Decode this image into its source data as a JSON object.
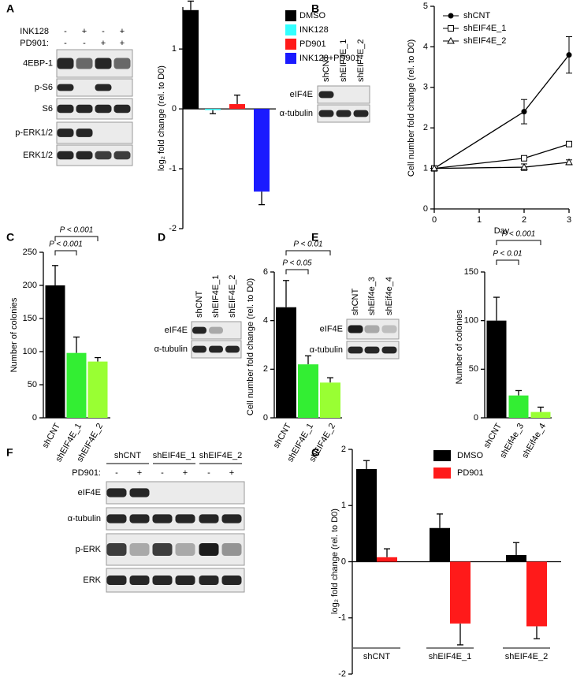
{
  "panels": [
    "A",
    "B",
    "C",
    "D",
    "E",
    "F",
    "G"
  ],
  "blots": [
    {
      "conditions": [
        {
          "name": "INK128",
          "signs": [
            "-",
            "+",
            "-",
            "+"
          ]
        },
        {
          "name": "PD901:",
          "signs": [
            "-",
            "-",
            "+",
            "+"
          ]
        }
      ],
      "rows": [
        "4EBP-1",
        "p-S6",
        "S6",
        "p-ERK1/2",
        "ERK1/2"
      ]
    },
    {
      "lanes": [
        "shCNT",
        "shEIF4E_1",
        "shEIF4E_2"
      ],
      "rows": [
        "eIF4E",
        "α-tubulin"
      ]
    },
    {
      "lanes": [
        "shCNT",
        "shEIF4E_1",
        "shEIF4E_2"
      ],
      "rows": [
        "eIF4E",
        "α-tubulin"
      ]
    },
    {
      "lanes": [
        "shCNT",
        "shEif4e_3",
        "shEif4e_4"
      ],
      "rows": [
        "eIF4E",
        "α-tubulin"
      ]
    },
    {
      "groups": [
        "shCNT",
        "shEIF4E_1",
        "shEIF4E_2"
      ],
      "conditions": [
        {
          "name": "PD901:",
          "signs": [
            "-",
            "+",
            "-",
            "+",
            "-",
            "+"
          ]
        }
      ],
      "rows": [
        "eIF4E",
        "α-tubulin",
        "p-ERK",
        "ERK"
      ]
    }
  ],
  "chart_data": [
    {
      "type": "bar",
      "ylabel": "log₂ fold change (rel. to D0)",
      "ylim": [
        -2,
        1.7
      ],
      "yticks": [
        -2,
        -1,
        0,
        1
      ],
      "series": [
        {
          "name": "DMSO",
          "color": "#000000",
          "values": [
            1.65
          ],
          "errors": [
            0.15
          ]
        },
        {
          "name": "INK128",
          "color": "#33ffff",
          "values": [
            -0.02
          ],
          "errors": [
            0.06
          ]
        },
        {
          "name": "PD901",
          "color": "#ff1a1a",
          "values": [
            0.08
          ],
          "errors": [
            0.15
          ]
        },
        {
          "name": "INK128+PD901",
          "color": "#1a1aff",
          "values": [
            -1.38
          ],
          "errors": [
            0.22
          ]
        }
      ]
    },
    {
      "type": "line",
      "xlabel": "Day",
      "ylabel": "Cell number fold change (rel. to D0)",
      "x": [
        0,
        2,
        3
      ],
      "xlim": [
        0,
        3
      ],
      "xticks": [
        0,
        1,
        2,
        3
      ],
      "ylim": [
        0,
        5
      ],
      "yticks": [
        0,
        1,
        2,
        3,
        4,
        5
      ],
      "series": [
        {
          "name": "shCNT",
          "marker": "circle",
          "color": "#000000",
          "values": [
            1,
            2.4,
            3.8
          ],
          "errors": [
            0,
            0.3,
            0.45
          ]
        },
        {
          "name": "shEIF4E_1",
          "marker": "square",
          "color": "#000000",
          "values": [
            1,
            1.25,
            1.6
          ],
          "errors": [
            0,
            0.05,
            0.05
          ]
        },
        {
          "name": "shEIF4E_2",
          "marker": "triangle",
          "color": "#000000",
          "values": [
            1,
            1.03,
            1.15
          ],
          "errors": [
            0,
            0.08,
            0.06
          ]
        }
      ]
    },
    {
      "type": "bar",
      "ylabel": "Number of colonies",
      "categories": [
        "shCNT",
        "shEIF4E_1",
        "shEIF4E_2"
      ],
      "values": [
        200,
        98,
        85
      ],
      "errors": [
        30,
        24,
        6
      ],
      "colors": [
        "#000000",
        "#33ee33",
        "#99ff33"
      ],
      "ylim": [
        0,
        250
      ],
      "yticks": [
        0,
        50,
        100,
        150,
        200,
        250
      ],
      "annotations": [
        "P < 0.001",
        "P < 0.001"
      ]
    },
    {
      "type": "bar",
      "ylabel": "Cell number fold change (rel. to D0)",
      "categories": [
        "shCNT",
        "shEIF4E_1",
        "shEIF4E_2"
      ],
      "values": [
        4.55,
        2.2,
        1.45
      ],
      "errors": [
        1.1,
        0.35,
        0.2
      ],
      "colors": [
        "#000000",
        "#33ee33",
        "#99ff33"
      ],
      "ylim": [
        0,
        6
      ],
      "yticks": [
        0,
        2,
        4,
        6
      ],
      "annotations": [
        "P < 0.01",
        "P < 0.05"
      ]
    },
    {
      "type": "bar",
      "ylabel": "Number of colonies",
      "categories": [
        "shCNT",
        "shEif4e_3",
        "shEif4e_4"
      ],
      "values": [
        100,
        23,
        6
      ],
      "errors": [
        24,
        5,
        5
      ],
      "colors": [
        "#000000",
        "#33ee33",
        "#99ff33"
      ],
      "ylim": [
        0,
        150
      ],
      "yticks": [
        0,
        50,
        100,
        150
      ],
      "annotations": [
        "P < 0.001",
        "P < 0.01"
      ]
    },
    {
      "type": "bar",
      "ylabel": "log₂ fold change (rel. to D0)",
      "categories": [
        "shCNT",
        "shEIF4E_1",
        "shEIF4E_2"
      ],
      "ylim": [
        -2,
        2
      ],
      "yticks": [
        -2,
        -1,
        0,
        1,
        2
      ],
      "series": [
        {
          "name": "DMSO",
          "color": "#000000",
          "values": [
            1.65,
            0.6,
            0.12
          ],
          "errors": [
            0.15,
            0.25,
            0.22
          ]
        },
        {
          "name": "PD901",
          "color": "#ff1a1a",
          "values": [
            0.08,
            -1.1,
            -1.15
          ],
          "errors": [
            0.15,
            0.38,
            0.22
          ]
        }
      ]
    }
  ]
}
